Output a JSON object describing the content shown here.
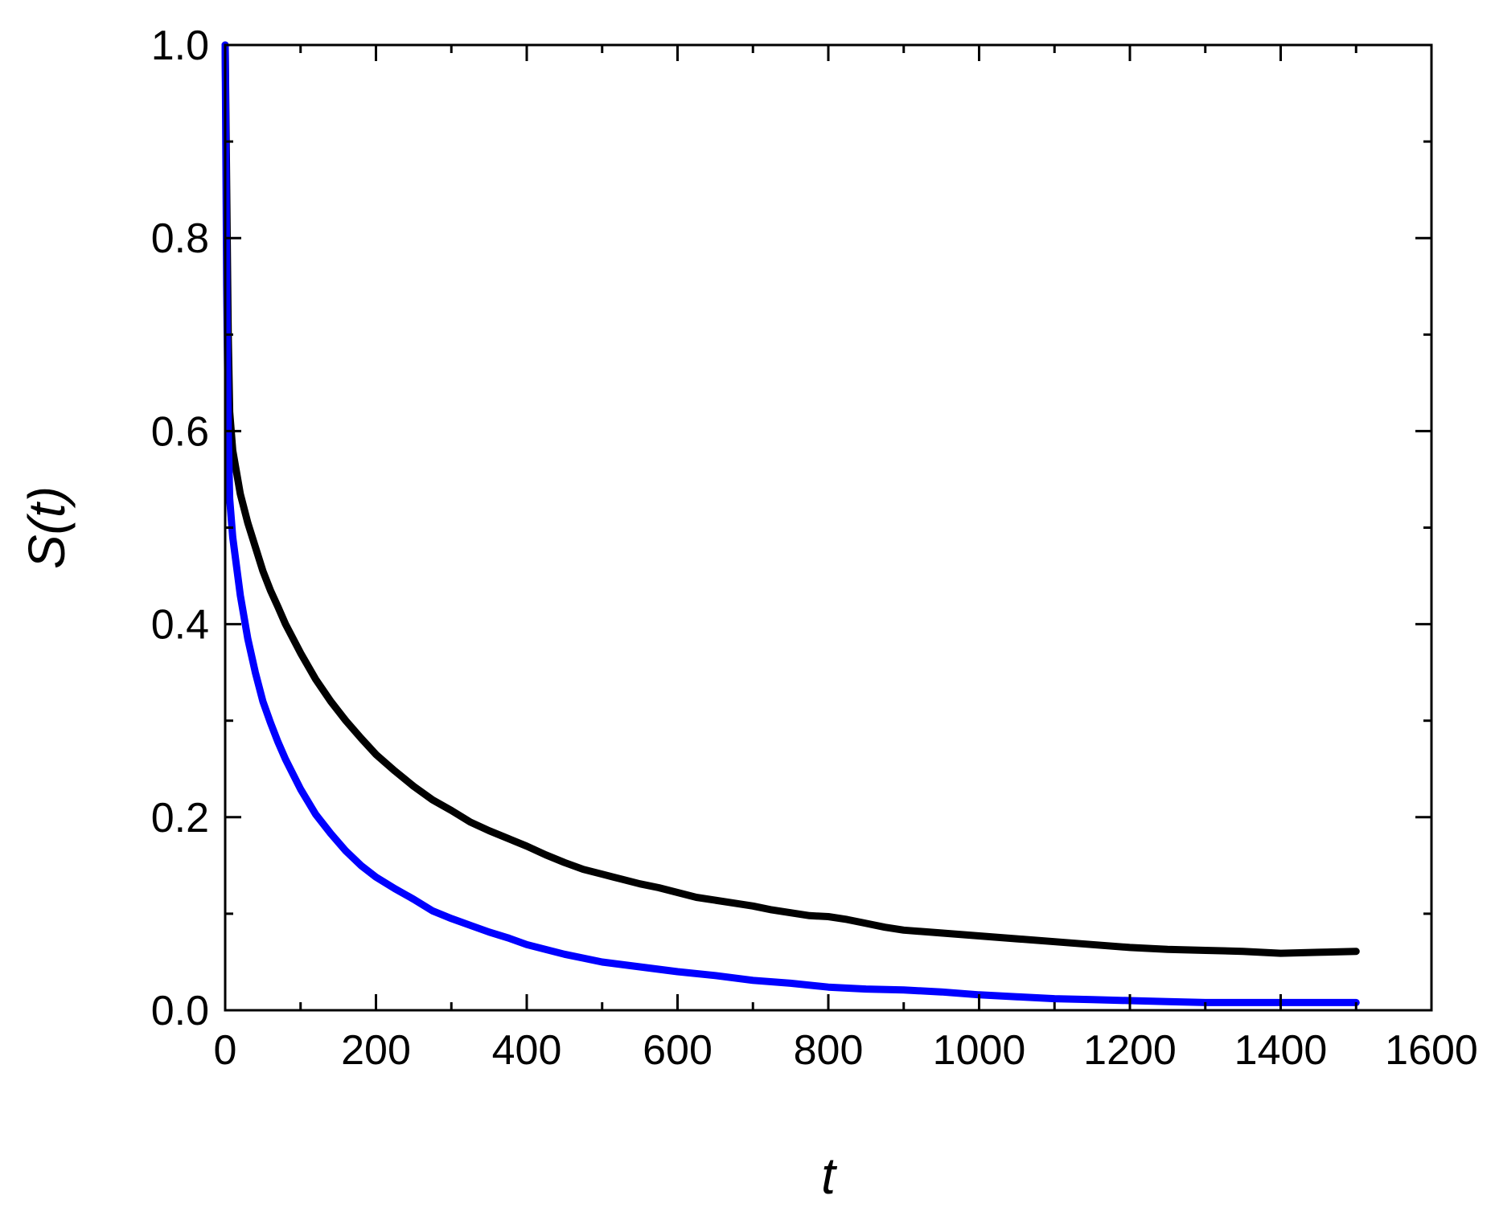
{
  "chart_data": {
    "type": "line",
    "title": "",
    "xlabel": "t",
    "ylabel": "S(t)",
    "xlim": [
      0,
      1600
    ],
    "ylim": [
      0,
      1.0
    ],
    "x_ticks": [
      0,
      200,
      400,
      600,
      800,
      1000,
      1200,
      1400,
      1600
    ],
    "x_tick_labels": [
      "0",
      "200",
      "400",
      "600",
      "800",
      "1000",
      "1200",
      "1400",
      "1600"
    ],
    "y_ticks": [
      0.0,
      0.2,
      0.4,
      0.6,
      0.8,
      1.0
    ],
    "y_tick_labels": [
      "0.0",
      "0.2",
      "0.4",
      "0.6",
      "0.8",
      "1.0"
    ],
    "x_minor_step": 100,
    "y_minor_step": 0.1,
    "grid": false,
    "legend": "none",
    "series": [
      {
        "color": "#000000",
        "points": [
          [
            0,
            1.0
          ],
          [
            2,
            0.85
          ],
          [
            4,
            0.7
          ],
          [
            6,
            0.62
          ],
          [
            10,
            0.58
          ],
          [
            20,
            0.535
          ],
          [
            30,
            0.505
          ],
          [
            40,
            0.48
          ],
          [
            50,
            0.455
          ],
          [
            60,
            0.435
          ],
          [
            70,
            0.418
          ],
          [
            80,
            0.4
          ],
          [
            100,
            0.37
          ],
          [
            120,
            0.343
          ],
          [
            140,
            0.32
          ],
          [
            160,
            0.3
          ],
          [
            180,
            0.282
          ],
          [
            200,
            0.265
          ],
          [
            225,
            0.248
          ],
          [
            250,
            0.232
          ],
          [
            275,
            0.218
          ],
          [
            300,
            0.207
          ],
          [
            325,
            0.195
          ],
          [
            350,
            0.186
          ],
          [
            375,
            0.178
          ],
          [
            400,
            0.17
          ],
          [
            425,
            0.161
          ],
          [
            450,
            0.153
          ],
          [
            475,
            0.146
          ],
          [
            500,
            0.141
          ],
          [
            525,
            0.136
          ],
          [
            550,
            0.131
          ],
          [
            575,
            0.127
          ],
          [
            600,
            0.122
          ],
          [
            625,
            0.117
          ],
          [
            650,
            0.114
          ],
          [
            675,
            0.111
          ],
          [
            700,
            0.108
          ],
          [
            725,
            0.104
          ],
          [
            750,
            0.101
          ],
          [
            775,
            0.098
          ],
          [
            800,
            0.097
          ],
          [
            825,
            0.094
          ],
          [
            850,
            0.09
          ],
          [
            875,
            0.086
          ],
          [
            900,
            0.083
          ],
          [
            950,
            0.08
          ],
          [
            1000,
            0.077
          ],
          [
            1050,
            0.074
          ],
          [
            1100,
            0.071
          ],
          [
            1150,
            0.068
          ],
          [
            1200,
            0.065
          ],
          [
            1250,
            0.063
          ],
          [
            1300,
            0.062
          ],
          [
            1350,
            0.061
          ],
          [
            1400,
            0.059
          ],
          [
            1450,
            0.06
          ],
          [
            1500,
            0.061
          ]
        ]
      },
      {
        "color": "#0000ff",
        "points": [
          [
            0,
            1.0
          ],
          [
            2,
            0.75
          ],
          [
            4,
            0.6
          ],
          [
            6,
            0.53
          ],
          [
            10,
            0.49
          ],
          [
            20,
            0.43
          ],
          [
            30,
            0.385
          ],
          [
            40,
            0.35
          ],
          [
            50,
            0.32
          ],
          [
            60,
            0.298
          ],
          [
            70,
            0.278
          ],
          [
            80,
            0.26
          ],
          [
            100,
            0.229
          ],
          [
            120,
            0.203
          ],
          [
            140,
            0.183
          ],
          [
            160,
            0.165
          ],
          [
            180,
            0.15
          ],
          [
            200,
            0.138
          ],
          [
            225,
            0.126
          ],
          [
            250,
            0.115
          ],
          [
            275,
            0.103
          ],
          [
            300,
            0.095
          ],
          [
            325,
            0.088
          ],
          [
            350,
            0.081
          ],
          [
            375,
            0.075
          ],
          [
            400,
            0.068
          ],
          [
            425,
            0.063
          ],
          [
            450,
            0.058
          ],
          [
            475,
            0.054
          ],
          [
            500,
            0.05
          ],
          [
            550,
            0.045
          ],
          [
            600,
            0.04
          ],
          [
            650,
            0.036
          ],
          [
            700,
            0.031
          ],
          [
            750,
            0.028
          ],
          [
            800,
            0.024
          ],
          [
            850,
            0.022
          ],
          [
            900,
            0.021
          ],
          [
            950,
            0.019
          ],
          [
            1000,
            0.016
          ],
          [
            1050,
            0.014
          ],
          [
            1100,
            0.012
          ],
          [
            1150,
            0.011
          ],
          [
            1200,
            0.01
          ],
          [
            1250,
            0.009
          ],
          [
            1300,
            0.008
          ],
          [
            1350,
            0.008
          ],
          [
            1400,
            0.008
          ],
          [
            1450,
            0.008
          ],
          [
            1500,
            0.008
          ]
        ]
      }
    ]
  }
}
